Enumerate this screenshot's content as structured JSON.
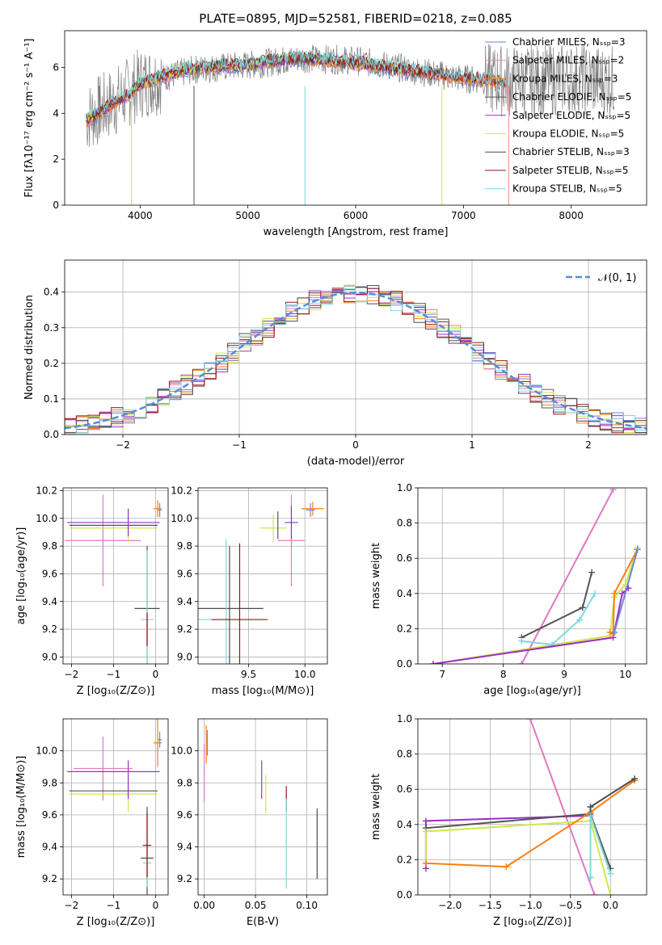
{
  "figure_title": "PLATE=0895, MJD=52581, FIBERID=0218, z=0.085",
  "colors": {
    "Chabrier MILES": "#6a86d8",
    "Salpeter MILES": "#f08a8a",
    "Kroupa MILES": "#ff7f0e",
    "Chabrier ELODIE": "#555555",
    "Salpeter ELODIE": "#9b30c8",
    "Kroupa ELODIE": "#cfe84a",
    "Chabrier STELIB": "#4c4c4c",
    "Salpeter STELIB": "#a01010",
    "Kroupa STELIB": "#7fd8df",
    "normal": "#5b8bd8",
    "pink": "#e377c2"
  },
  "chart_data": [
    {
      "id": "spectrum",
      "type": "line",
      "title": "PLATE=0895, MJD=52581, FIBERID=0218, z=0.085",
      "xlabel": "wavelength [Angstrom, rest frame]",
      "ylabel": "Flux [f_λ 10^-17 erg cm^-2 s^-1 A^-1]",
      "xlim": [
        3300,
        8700
      ],
      "ylim": [
        0,
        7.6
      ],
      "xticks": [
        4000,
        5000,
        6000,
        7000,
        8000
      ],
      "yticks": [
        0,
        2,
        4,
        6
      ],
      "legend_location": "upper right",
      "legend": [
        "Chabrier MILES, N_SSP=3",
        "Salpeter MILES, N_SSP=2",
        "Kroupa MILES, N_SSP=3",
        "Chabrier ELODIE, N_SSP=5",
        "Salpeter ELODIE, N_SSP=5",
        "Kroupa ELODIE, N_SSP=5",
        "Chabrier STELIB, N_SSP=3",
        "Salpeter STELIB, N_SSP=5",
        "Kroupa STELIB, N_SSP=5"
      ],
      "continuum": {
        "x": [
          3500,
          3600,
          3700,
          3800,
          3900,
          4000,
          4100,
          4200,
          4400,
          4600,
          4800,
          5000,
          5200,
          5500,
          5800,
          6000,
          6300,
          6600,
          6900,
          7100,
          7400
        ],
        "y": [
          3.7,
          3.95,
          4.3,
          4.6,
          4.8,
          5.3,
          5.4,
          5.6,
          5.9,
          6.0,
          6.1,
          6.1,
          6.3,
          6.4,
          6.3,
          6.2,
          6.0,
          5.8,
          5.6,
          5.5,
          5.3
        ]
      },
      "data_continuum": {
        "x": [
          3500,
          3800,
          4000,
          4500,
          5000,
          5500,
          6000,
          6500,
          7000,
          7500,
          8000,
          8400
        ],
        "y": [
          3.8,
          4.6,
          5.3,
          5.9,
          6.1,
          6.4,
          6.3,
          5.9,
          5.5,
          5.4,
          5.5,
          5.4
        ]
      },
      "dips": [
        {
          "x": 3620,
          "y": 3.1,
          "series": "Chabrier ELODIE"
        },
        {
          "x": 3920,
          "y": 0.0,
          "series": "Kroupa ELODIE"
        },
        {
          "x": 4500,
          "y": 0.0,
          "series": "Chabrier ELODIE"
        },
        {
          "x": 5530,
          "y": 0.0,
          "series": "Kroupa STELIB"
        },
        {
          "x": 6800,
          "y": 0.0,
          "series": "Kroupa ELODIE"
        },
        {
          "x": 7420,
          "y": 0.0,
          "series": "Salpeter MILES"
        }
      ]
    },
    {
      "id": "residual-hist",
      "type": "bar",
      "xlabel": "(data-model)/error",
      "ylabel": "Normed distribution",
      "xlim": [
        -2.5,
        2.5
      ],
      "ylim": [
        0,
        0.49
      ],
      "xticks": [
        -2,
        -1,
        0,
        1,
        2
      ],
      "yticks": [
        0.0,
        0.1,
        0.2,
        0.3,
        0.4
      ],
      "legend_location": "upper right",
      "legend": [
        "N(0,1)"
      ],
      "bin_width": 0.1,
      "base_values": [
        0.02,
        0.02,
        0.03,
        0.03,
        0.04,
        0.05,
        0.06,
        0.07,
        0.08,
        0.08,
        0.09,
        0.1,
        0.11,
        0.12,
        0.13,
        0.14,
        0.16,
        0.17,
        0.19,
        0.21,
        0.22,
        0.24,
        0.25,
        0.27,
        0.29,
        0.3,
        0.31,
        0.32,
        0.33,
        0.35,
        0.37,
        0.39,
        0.4,
        0.41,
        0.42,
        0.41,
        0.41,
        0.4,
        0.39,
        0.38,
        0.37,
        0.35,
        0.34,
        0.33,
        0.31,
        0.3,
        0.28,
        0.27,
        0.25,
        0.23,
        0.22,
        0.2,
        0.18,
        0.17,
        0.15,
        0.13,
        0.12,
        0.1,
        0.09,
        0.08,
        0.07,
        0.06,
        0.06,
        0.05,
        0.04,
        0.04,
        0.03,
        0.03,
        0.03,
        0.03,
        0.03,
        0.03,
        0.03,
        0.03,
        0.03,
        0.03,
        0.03,
        0.03,
        0.02,
        0.02,
        0.02,
        0.02,
        0.02,
        0.02,
        0.02,
        0.02,
        0.02,
        0.02,
        0.02,
        0.02,
        0.02,
        0.02,
        0.02,
        0.02,
        0.02,
        0.02,
        0.02,
        0.02,
        0.02,
        0.02
      ],
      "normal_curve": "N(0,1)"
    },
    {
      "id": "age-vs-Z",
      "type": "scatter",
      "xlabel": "Z [log10(Z/Z_sun)]",
      "ylabel": "age  [log10(age/yr)]",
      "xlim": [
        -2.2,
        0.3
      ],
      "ylim": [
        8.95,
        10.22
      ],
      "xticks": [
        -2,
        -1,
        0
      ],
      "yticks": [
        9.0,
        9.2,
        9.4,
        9.6,
        9.8,
        10.0,
        10.2
      ],
      "points": [
        {
          "series": "Kroupa MILES",
          "x": 0.05,
          "y": 10.07,
          "xerr": 0.1,
          "yerr": 0.06
        },
        {
          "series": "Chabrier MILES",
          "x": 0.1,
          "y": 10.06,
          "xerr": 0.05,
          "yerr": 0.05
        },
        {
          "series": "Salpeter MILES",
          "x": -1.25,
          "y": 9.84,
          "xerr": 0.9,
          "yerr": 0.33
        },
        {
          "series": "Salpeter ELODIE",
          "x": -1.0,
          "y": 9.97,
          "xerr": 1.1,
          "yerr": 0.0
        },
        {
          "series": "Chabrier ELODIE",
          "x": -1.0,
          "y": 9.95,
          "xerr": 1.05,
          "yerr": 0.0
        },
        {
          "series": "Kroupa ELODIE",
          "x": -1.0,
          "y": 9.93,
          "xerr": 1.05,
          "yerr": 0.0
        },
        {
          "series": "Kroupa ELODIE",
          "x": -0.65,
          "y": 9.95,
          "xerr": 0.0,
          "yerr": 0.12
        },
        {
          "series": "Salpeter ELODIE",
          "x": -0.65,
          "y": 9.97,
          "xerr": 0.0,
          "yerr": 0.1
        },
        {
          "series": "Chabrier STELIB",
          "x": -0.2,
          "y": 9.35,
          "xerr": 0.3,
          "yerr": 0.45
        },
        {
          "series": "Kroupa STELIB",
          "x": -0.2,
          "y": 9.27,
          "xerr": 0.15,
          "yerr": 0.5
        },
        {
          "series": "Salpeter STELIB",
          "x": -0.2,
          "y": 9.2,
          "xerr": 0.0,
          "yerr": 0.12
        }
      ]
    },
    {
      "id": "age-vs-mass",
      "type": "scatter",
      "xlabel": "mass [log10(M/M_sun)]",
      "ylabel": "",
      "xlim": [
        9.05,
        10.2
      ],
      "ylim": [
        8.95,
        10.22
      ],
      "xticks": [
        9.5,
        10.0
      ],
      "yticks": [
        9.0,
        9.2,
        9.4,
        9.6,
        9.8,
        10.0,
        10.2
      ],
      "points": [
        {
          "series": "Kroupa MILES",
          "x": 10.07,
          "y": 10.07,
          "xerr": 0.1,
          "yerr": 0.05
        },
        {
          "series": "Chabrier MILES",
          "x": 10.05,
          "y": 10.06,
          "xerr": 0.04,
          "yerr": 0.05
        },
        {
          "series": "Salpeter MILES",
          "x": 9.88,
          "y": 9.84,
          "xerr": 0.12,
          "yerr": 0.33
        },
        {
          "series": "Salpeter ELODIE",
          "x": 9.88,
          "y": 9.97,
          "xerr": 0.06,
          "yerr": 0.12
        },
        {
          "series": "Kroupa ELODIE",
          "x": 9.72,
          "y": 9.93,
          "xerr": 0.12,
          "yerr": 0.1
        },
        {
          "series": "Chabrier ELODIE",
          "x": 9.76,
          "y": 9.95,
          "xerr": 0.0,
          "yerr": 0.1
        },
        {
          "series": "Chabrier STELIB",
          "x": 9.33,
          "y": 9.35,
          "xerr": 0.3,
          "yerr": 0.45
        },
        {
          "series": "Kroupa STELIB",
          "x": 9.3,
          "y": 9.27,
          "xerr": 0.35,
          "yerr": 0.58
        },
        {
          "series": "Salpeter STELIB",
          "x": 9.42,
          "y": 9.27,
          "xerr": 0.25,
          "yerr": 0.55
        }
      ]
    },
    {
      "id": "massweight-vs-age",
      "type": "line",
      "xlabel": "age  [log10(age/yr)]",
      "ylabel": "mass weight",
      "xlim": [
        6.6,
        10.35
      ],
      "ylim": [
        0,
        1.0
      ],
      "xticks": [
        7,
        8,
        9,
        10
      ],
      "yticks": [
        0.0,
        0.2,
        0.4,
        0.6,
        0.8,
        1.0
      ],
      "series": [
        {
          "series": "Salpeter MILES",
          "x": [
            8.3,
            9.8
          ],
          "y": [
            0.0,
            0.99
          ]
        },
        {
          "series": "Chabrier ELODIE",
          "x": [
            8.3,
            9.3,
            9.45
          ],
          "y": [
            0.15,
            0.32,
            0.52
          ]
        },
        {
          "series": "Kroupa ELODIE",
          "x": [
            6.85,
            9.75,
            9.82,
            10.0,
            10.2
          ],
          "y": [
            0.0,
            0.16,
            0.38,
            0.45,
            0.66
          ]
        },
        {
          "series": "Kroupa STELIB",
          "x": [
            8.3,
            8.8,
            9.25,
            9.5
          ],
          "y": [
            0.13,
            0.11,
            0.25,
            0.4
          ]
        },
        {
          "series": "Salpeter ELODIE",
          "x": [
            6.85,
            9.8,
            9.95,
            10.05
          ],
          "y": [
            0.0,
            0.15,
            0.4,
            0.43
          ]
        },
        {
          "series": "Kroupa MILES",
          "x": [
            9.75,
            9.8,
            9.82,
            10.2
          ],
          "y": [
            0.18,
            0.17,
            0.4,
            0.65
          ]
        },
        {
          "series": "Chabrier MILES",
          "x": [
            9.82,
            10.2
          ],
          "y": [
            0.18,
            0.65
          ]
        }
      ]
    },
    {
      "id": "mass-vs-Z",
      "type": "scatter",
      "xlabel": "Z [log10(Z/Z_sun)]",
      "ylabel": "mass [log10(M/M_sun)]",
      "xlim": [
        -2.2,
        0.3
      ],
      "ylim": [
        9.1,
        10.2
      ],
      "xticks": [
        -2,
        -1,
        0
      ],
      "yticks": [
        9.2,
        9.4,
        9.6,
        9.8,
        10.0
      ],
      "points": [
        {
          "series": "Kroupa MILES",
          "x": 0.05,
          "y": 10.05,
          "xerr": 0.1,
          "yerr": 0.15
        },
        {
          "series": "Chabrier MILES",
          "x": 0.1,
          "y": 10.07,
          "xerr": 0.05,
          "yerr": 0.05
        },
        {
          "series": "Salpeter MILES",
          "x": -1.25,
          "y": 9.89,
          "xerr": 0.7,
          "yerr": 0.2
        },
        {
          "series": "Salpeter ELODIE",
          "x": -1.0,
          "y": 9.87,
          "xerr": 1.1,
          "yerr": 0.0
        },
        {
          "series": "Chabrier ELODIE",
          "x": -1.0,
          "y": 9.75,
          "xerr": 1.05,
          "yerr": 0.0
        },
        {
          "series": "Kroupa ELODIE",
          "x": -1.0,
          "y": 9.73,
          "xerr": 1.05,
          "yerr": 0.0
        },
        {
          "series": "Kroupa ELODIE",
          "x": -0.65,
          "y": 9.78,
          "xerr": 0.0,
          "yerr": 0.16
        },
        {
          "series": "Salpeter ELODIE",
          "x": -0.65,
          "y": 9.82,
          "xerr": 0.0,
          "yerr": 0.12
        },
        {
          "series": "Chabrier STELIB",
          "x": -0.2,
          "y": 9.33,
          "xerr": 0.15,
          "yerr": 0.32
        },
        {
          "series": "Kroupa STELIB",
          "x": -0.2,
          "y": 9.3,
          "xerr": 0.1,
          "yerr": 0.15
        },
        {
          "series": "Salpeter STELIB",
          "x": -0.2,
          "y": 9.41,
          "xerr": 0.1,
          "yerr": 0.2
        }
      ]
    },
    {
      "id": "mass-vs-ebv",
      "type": "scatter",
      "xlabel": "E(B-V)",
      "ylabel": "",
      "xlim": [
        -0.006,
        0.12
      ],
      "ylim": [
        9.1,
        10.2
      ],
      "xticks": [
        0.0,
        0.05,
        0.1
      ],
      "yticks": [
        9.2,
        9.4,
        9.6,
        9.8,
        10.0
      ],
      "points": [
        {
          "series": "Chabrier MILES",
          "x": 0.003,
          "y": 10.05,
          "yerr": 0.08
        },
        {
          "series": "Kroupa MILES",
          "x": 0.002,
          "y": 10.04,
          "yerr": 0.12
        },
        {
          "series": "Salpeter MILES",
          "x": 0.0,
          "y": 9.86,
          "yerr": 0.18
        },
        {
          "series": "Salpeter ELODIE",
          "x": 0.056,
          "y": 9.82,
          "yerr": 0.12
        },
        {
          "series": "Kroupa ELODIE",
          "x": 0.06,
          "y": 9.73,
          "yerr": 0.12
        },
        {
          "series": "Salpeter STELIB",
          "x": 0.08,
          "y": 9.7,
          "yerr": 0.08
        },
        {
          "series": "Kroupa STELIB",
          "x": 0.08,
          "y": 9.42,
          "yerr": 0.28
        },
        {
          "series": "Chabrier STELIB",
          "x": 0.11,
          "y": 9.42,
          "yerr": 0.22
        }
      ]
    },
    {
      "id": "massweight-vs-Z",
      "type": "line",
      "xlabel": "Z [log10(Z/Z_sun)]",
      "ylabel": "mass weight",
      "xlim": [
        -2.4,
        0.45
      ],
      "ylim": [
        0,
        1.0
      ],
      "xticks": [
        -2.0,
        -1.5,
        -1.0,
        -0.5,
        0.0
      ],
      "yticks": [
        0.0,
        0.2,
        0.4,
        0.6,
        0.8,
        1.0
      ],
      "series": [
        {
          "series": "Salpeter MILES",
          "x": [
            -1.0,
            -0.2
          ],
          "y": [
            1.0,
            0.0
          ]
        },
        {
          "series": "Salpeter ELODIE",
          "x": [
            -2.3,
            -2.3,
            -0.25
          ],
          "y": [
            0.15,
            0.42,
            0.45
          ]
        },
        {
          "series": "Chabrier ELODIE",
          "x": [
            -2.3,
            -0.25,
            0.0
          ],
          "y": [
            0.38,
            0.46,
            0.15
          ]
        },
        {
          "series": "Kroupa ELODIE",
          "x": [
            -2.3,
            -2.3,
            -0.25,
            0.0
          ],
          "y": [
            0.18,
            0.36,
            0.42,
            0.0
          ]
        },
        {
          "series": "Kroupa MILES",
          "x": [
            -2.3,
            -1.3,
            -0.25,
            0.3
          ],
          "y": [
            0.18,
            0.16,
            0.47,
            0.65
          ]
        },
        {
          "series": "Chabrier STELIB",
          "x": [
            -0.25,
            -0.25,
            0.3
          ],
          "y": [
            0.1,
            0.5,
            0.66
          ]
        },
        {
          "series": "Kroupa STELIB",
          "x": [
            -0.25,
            -0.25,
            0.0
          ],
          "y": [
            0.1,
            0.45,
            0.12
          ]
        }
      ]
    }
  ]
}
